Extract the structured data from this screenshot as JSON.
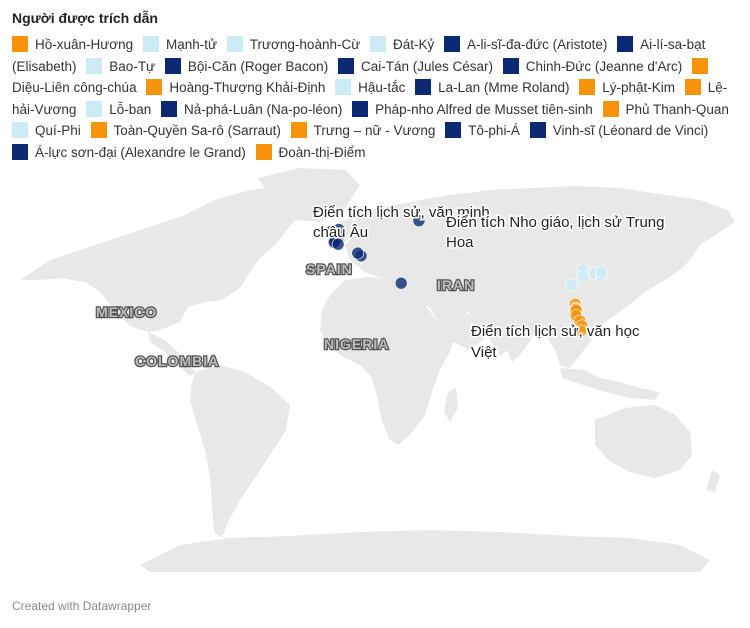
{
  "title": "Người được trích dẫn",
  "footer": "Created with Datawrapper",
  "colors": {
    "vietnam": "#f7930b",
    "china": "#ccebf5",
    "europe": "#0b2a73",
    "land": "#e8e8e8"
  },
  "legend": [
    {
      "label": "Hồ-xuân-Hương",
      "group": "vietnam"
    },
    {
      "label": "Mạnh-tử",
      "group": "china"
    },
    {
      "label": "Trương-hoành-Cừ",
      "group": "china"
    },
    {
      "label": "Đát-Kỷ",
      "group": "china"
    },
    {
      "label": "A-li-sĩ-đa-đức (Aristote)",
      "group": "europe"
    },
    {
      "label": "Ai-lí-sa-bạt (Elisabeth)",
      "group": "europe"
    },
    {
      "label": "Bao-Tự",
      "group": "china"
    },
    {
      "label": "Bội-Căn (Roger Bacon)",
      "group": "europe"
    },
    {
      "label": "Cai-Tán (Jules César)",
      "group": "europe"
    },
    {
      "label": "Chinh-Đức (Jeanne d'Arc)",
      "group": "europe"
    },
    {
      "label": "Diệu-Liên công-chúa",
      "group": "vietnam"
    },
    {
      "label": "Hoàng-Thượng Khải-Định",
      "group": "vietnam"
    },
    {
      "label": "Hậu-tắc",
      "group": "china"
    },
    {
      "label": "La-Lan (Mme Roland)",
      "group": "europe"
    },
    {
      "label": "Lý-phật-Kim",
      "group": "vietnam"
    },
    {
      "label": "Lệ-hải-Vương",
      "group": "vietnam"
    },
    {
      "label": "Lỗ-ban",
      "group": "china"
    },
    {
      "label": "Nả-phá-Luân (Na-po-léon)",
      "group": "europe"
    },
    {
      "label": "Pháp-nho Alfred de Musset tiên-sinh",
      "group": "europe"
    },
    {
      "label": "Phủ Thanh-Quan",
      "group": "vietnam"
    },
    {
      "label": "Quí-Phi",
      "group": "china"
    },
    {
      "label": "Toàn-Quyền Sa-rô (Sarraut)",
      "group": "vietnam"
    },
    {
      "label": "Trưng – nữ - Vương",
      "group": "vietnam"
    },
    {
      "label": "Tô-phi-Á",
      "group": "europe"
    },
    {
      "label": "Vinh-sĩ (Léonard de Vinci)",
      "group": "europe"
    },
    {
      "label": "Á-lực sơn-đại (Alexandre le Grand)",
      "group": "europe"
    },
    {
      "label": "Đoàn-thị-Điểm",
      "group": "vietnam"
    }
  ],
  "country_labels": [
    "SPAIN",
    "IRAN",
    "MEXICO",
    "COLOMBIA",
    "NIGERIA"
  ],
  "annotations": {
    "europe": [
      "Điển tích lịch sử, văn minh",
      "châu Âu"
    ],
    "china": [
      "Điển tích Nho giáo, lịch sử Trung",
      "Hoa"
    ],
    "vietnam": [
      "Điển tích lịch sử, văn học",
      "Việt"
    ]
  },
  "points": [
    {
      "lat": 48.9,
      "lon": 2.4,
      "group": "europe"
    },
    {
      "lat": 48.6,
      "lon": 2.0,
      "group": "europe"
    },
    {
      "lat": 47.8,
      "lon": 1.2,
      "group": "europe"
    },
    {
      "lat": 47.2,
      "lon": 0.8,
      "group": "europe"
    },
    {
      "lat": 46.5,
      "lon": 2.5,
      "group": "europe"
    },
    {
      "lat": 51.5,
      "lon": -0.5,
      "group": "europe"
    },
    {
      "lat": 52.3,
      "lon": 2.8,
      "group": "europe"
    },
    {
      "lat": 41.9,
      "lon": 12.5,
      "group": "europe"
    },
    {
      "lat": 43.0,
      "lon": 11.0,
      "group": "europe"
    },
    {
      "lat": 55.7,
      "lon": 37.6,
      "group": "europe"
    },
    {
      "lat": 31.2,
      "lon": 29.9,
      "group": "europe"
    },
    {
      "lat": 35.0,
      "lon": 114.0,
      "group": "china"
    },
    {
      "lat": 36.5,
      "lon": 109.0,
      "group": "china"
    },
    {
      "lat": 30.5,
      "lon": 104.0,
      "group": "china"
    },
    {
      "lat": 34.3,
      "lon": 117.0,
      "group": "china"
    },
    {
      "lat": 35.6,
      "lon": 116.9,
      "group": "china"
    },
    {
      "lat": 34.0,
      "lon": 108.9,
      "group": "china"
    },
    {
      "lat": 23.0,
      "lon": 105.6,
      "group": "vietnam"
    },
    {
      "lat": 21.3,
      "lon": 105.9,
      "group": "vietnam"
    },
    {
      "lat": 21.0,
      "lon": 105.8,
      "group": "vietnam"
    },
    {
      "lat": 20.5,
      "lon": 106.0,
      "group": "vietnam"
    },
    {
      "lat": 18.5,
      "lon": 106.0,
      "group": "vietnam"
    },
    {
      "lat": 16.4,
      "lon": 107.6,
      "group": "vietnam"
    },
    {
      "lat": 14.5,
      "lon": 108.5,
      "group": "vietnam"
    },
    {
      "lat": 12.5,
      "lon": 108.0,
      "group": "vietnam"
    }
  ]
}
